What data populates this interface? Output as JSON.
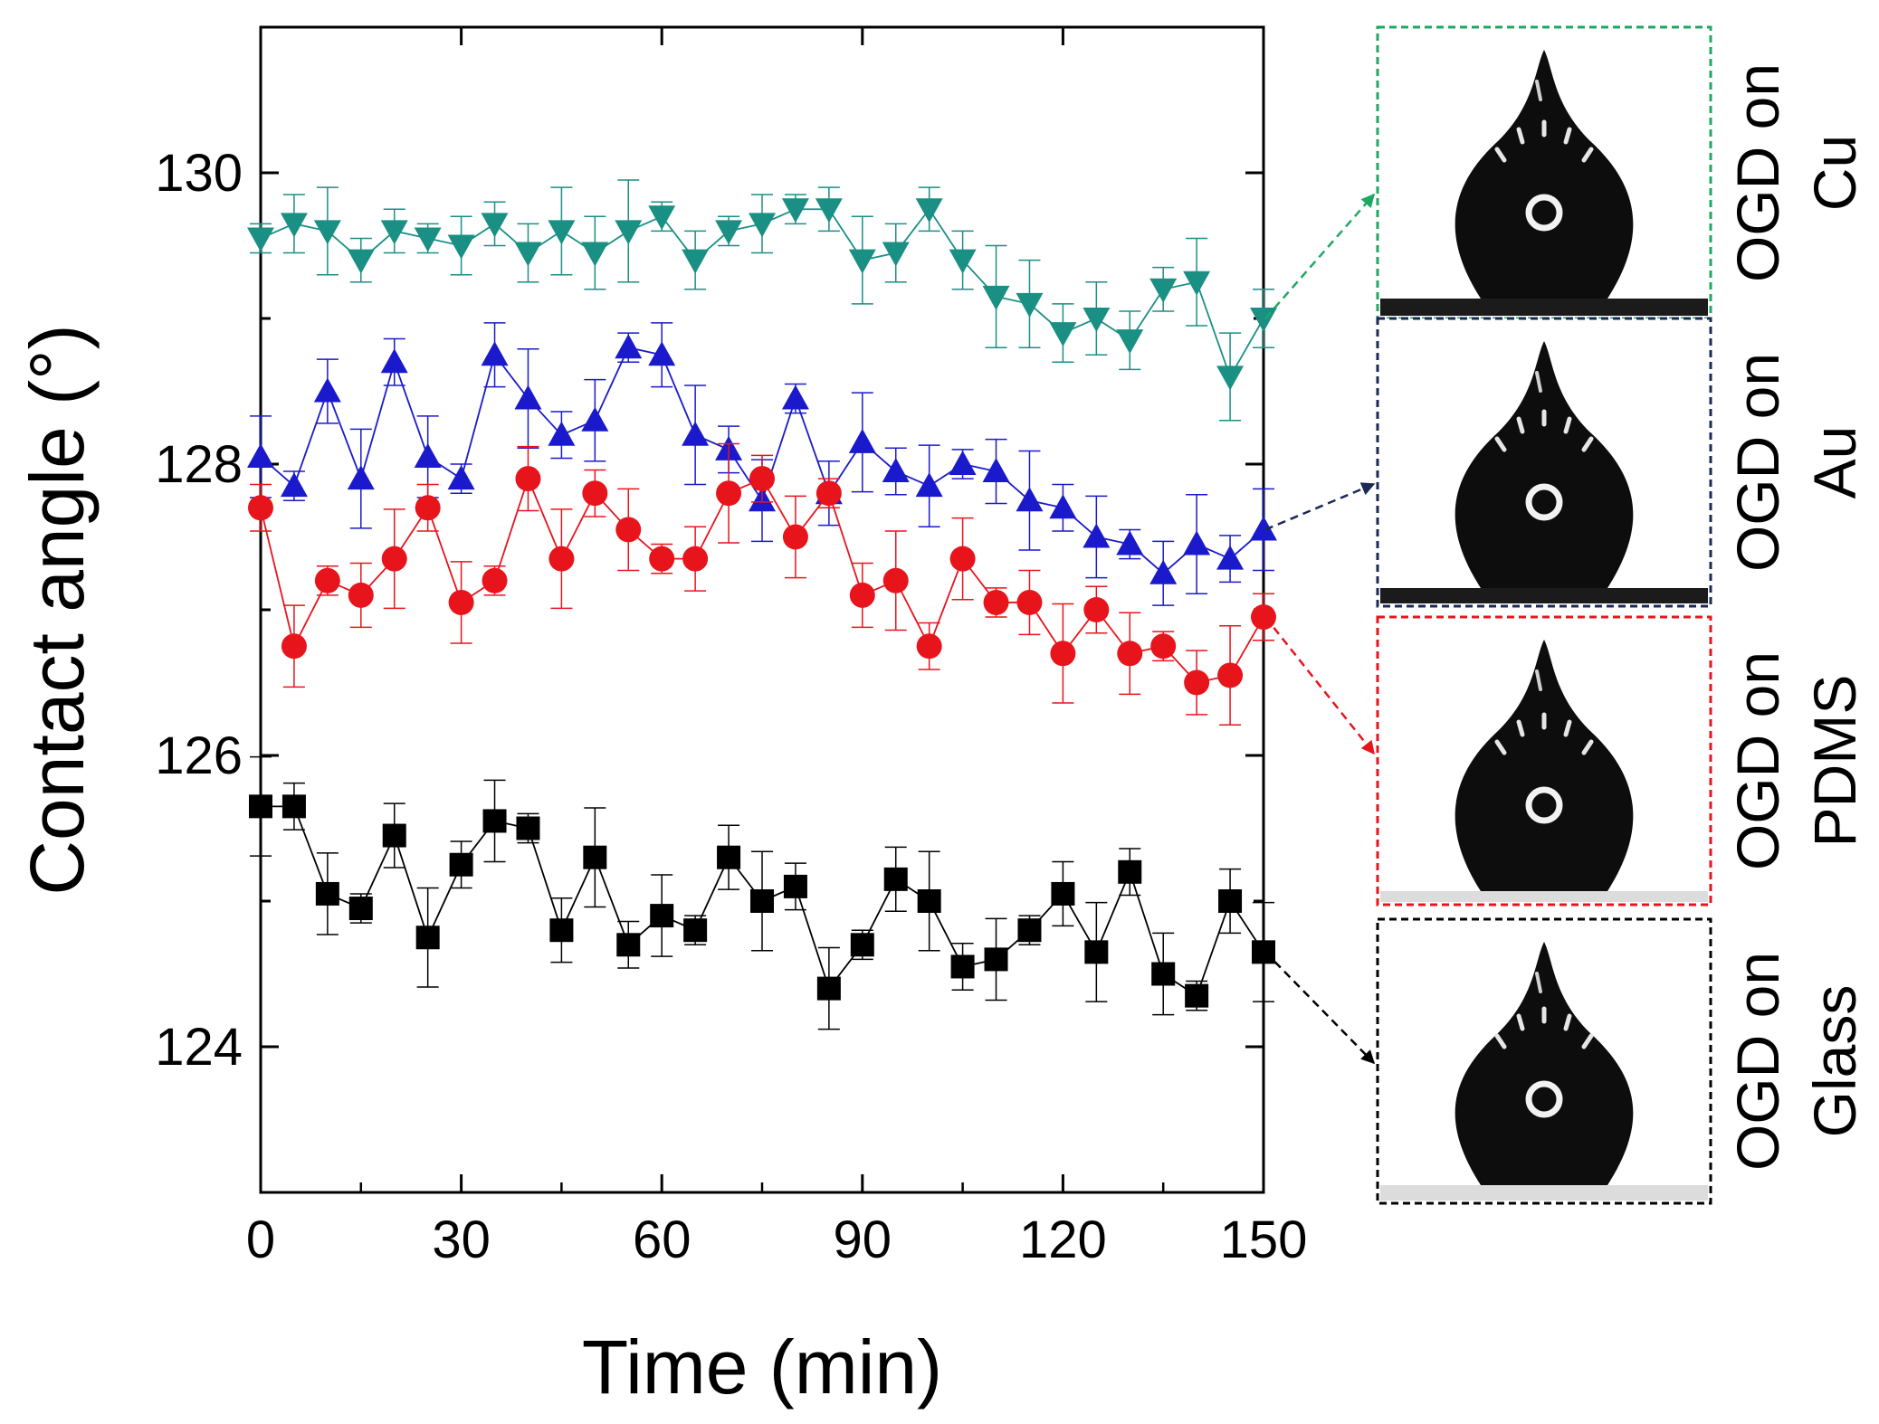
{
  "chart_data": {
    "type": "line",
    "title": "",
    "xlabel": "Time (min)",
    "ylabel": "Contact angle (°)",
    "xlim": [
      0,
      150
    ],
    "ylim": [
      123,
      131
    ],
    "xticks": [
      0,
      30,
      60,
      90,
      120,
      150
    ],
    "xtick_labels": [
      "0",
      "30",
      "60",
      "90",
      "120",
      "150"
    ],
    "yticks": [
      124,
      126,
      128,
      130
    ],
    "ytick_labels": [
      "124",
      "126",
      "128",
      "130"
    ],
    "grid": false,
    "x": [
      0,
      5,
      10,
      15,
      20,
      25,
      30,
      35,
      40,
      45,
      50,
      55,
      60,
      65,
      70,
      75,
      80,
      85,
      90,
      95,
      100,
      105,
      110,
      115,
      120,
      125,
      130,
      135,
      140,
      145,
      150
    ],
    "series": [
      {
        "name": "OGD on Cu",
        "color": "#1a8f84",
        "marker": "triangle-down",
        "values": [
          129.55,
          129.65,
          129.6,
          129.4,
          129.6,
          129.55,
          129.5,
          129.65,
          129.45,
          129.6,
          129.45,
          129.6,
          129.7,
          129.4,
          129.6,
          129.65,
          129.75,
          129.75,
          129.4,
          129.45,
          129.75,
          129.4,
          129.15,
          129.1,
          128.9,
          129.0,
          128.85,
          129.2,
          129.25,
          128.6,
          129.0
        ],
        "errors": [
          0.1,
          0.2,
          0.3,
          0.15,
          0.15,
          0.1,
          0.2,
          0.15,
          0.2,
          0.3,
          0.25,
          0.35,
          0.1,
          0.2,
          0.1,
          0.2,
          0.1,
          0.15,
          0.3,
          0.2,
          0.15,
          0.2,
          0.35,
          0.3,
          0.2,
          0.25,
          0.2,
          0.15,
          0.3,
          0.3,
          0.2
        ]
      },
      {
        "name": "OGD on Au",
        "color": "#1a1acc",
        "marker": "triangle-up",
        "values": [
          128.05,
          127.85,
          128.5,
          127.9,
          128.7,
          128.05,
          127.9,
          128.75,
          128.45,
          128.2,
          128.3,
          128.8,
          128.75,
          128.2,
          128.1,
          127.75,
          128.45,
          127.8,
          128.15,
          127.95,
          127.85,
          128.0,
          127.95,
          127.75,
          127.7,
          127.5,
          127.45,
          127.25,
          127.45,
          127.35,
          127.55
        ]
      },
      {
        "name": "OGD on PDMS",
        "color": "#e8141c",
        "marker": "circle",
        "values": [
          127.7,
          126.75,
          127.2,
          127.1,
          127.35,
          127.7,
          127.05,
          127.2,
          127.9,
          127.35,
          127.8,
          127.55,
          127.35,
          127.35,
          127.8,
          127.9,
          127.5,
          127.8,
          127.1,
          127.2,
          126.75,
          127.35,
          127.05,
          127.05,
          126.7,
          127.0,
          126.7,
          126.75,
          126.5,
          126.55,
          126.95
        ]
      },
      {
        "name": "OGD on Glass",
        "color": "#000000",
        "marker": "square",
        "values": [
          125.65,
          125.65,
          125.05,
          124.95,
          125.45,
          124.75,
          125.25,
          125.55,
          125.5,
          124.8,
          125.3,
          124.7,
          124.9,
          124.8,
          125.3,
          125.0,
          125.1,
          124.4,
          124.7,
          125.15,
          125.0,
          124.55,
          124.6,
          124.8,
          125.05,
          124.65,
          125.2,
          124.5,
          124.35,
          125.0,
          124.65
        ]
      }
    ],
    "annotations": [
      {
        "series": "OGD on Cu",
        "caption_line1": "OGD on",
        "caption_line2": "Cu",
        "frame_color": "#1fa862"
      },
      {
        "series": "OGD on Au",
        "caption_line1": "OGD on",
        "caption_line2": "Au",
        "frame_color": "#1a2a55"
      },
      {
        "series": "OGD on PDMS",
        "caption_line1": "OGD on",
        "caption_line2": "PDMS",
        "frame_color": "#e8141c"
      },
      {
        "series": "OGD on Glass",
        "caption_line1": "OGD on",
        "caption_line2": "Glass",
        "frame_color": "#000000"
      }
    ]
  }
}
